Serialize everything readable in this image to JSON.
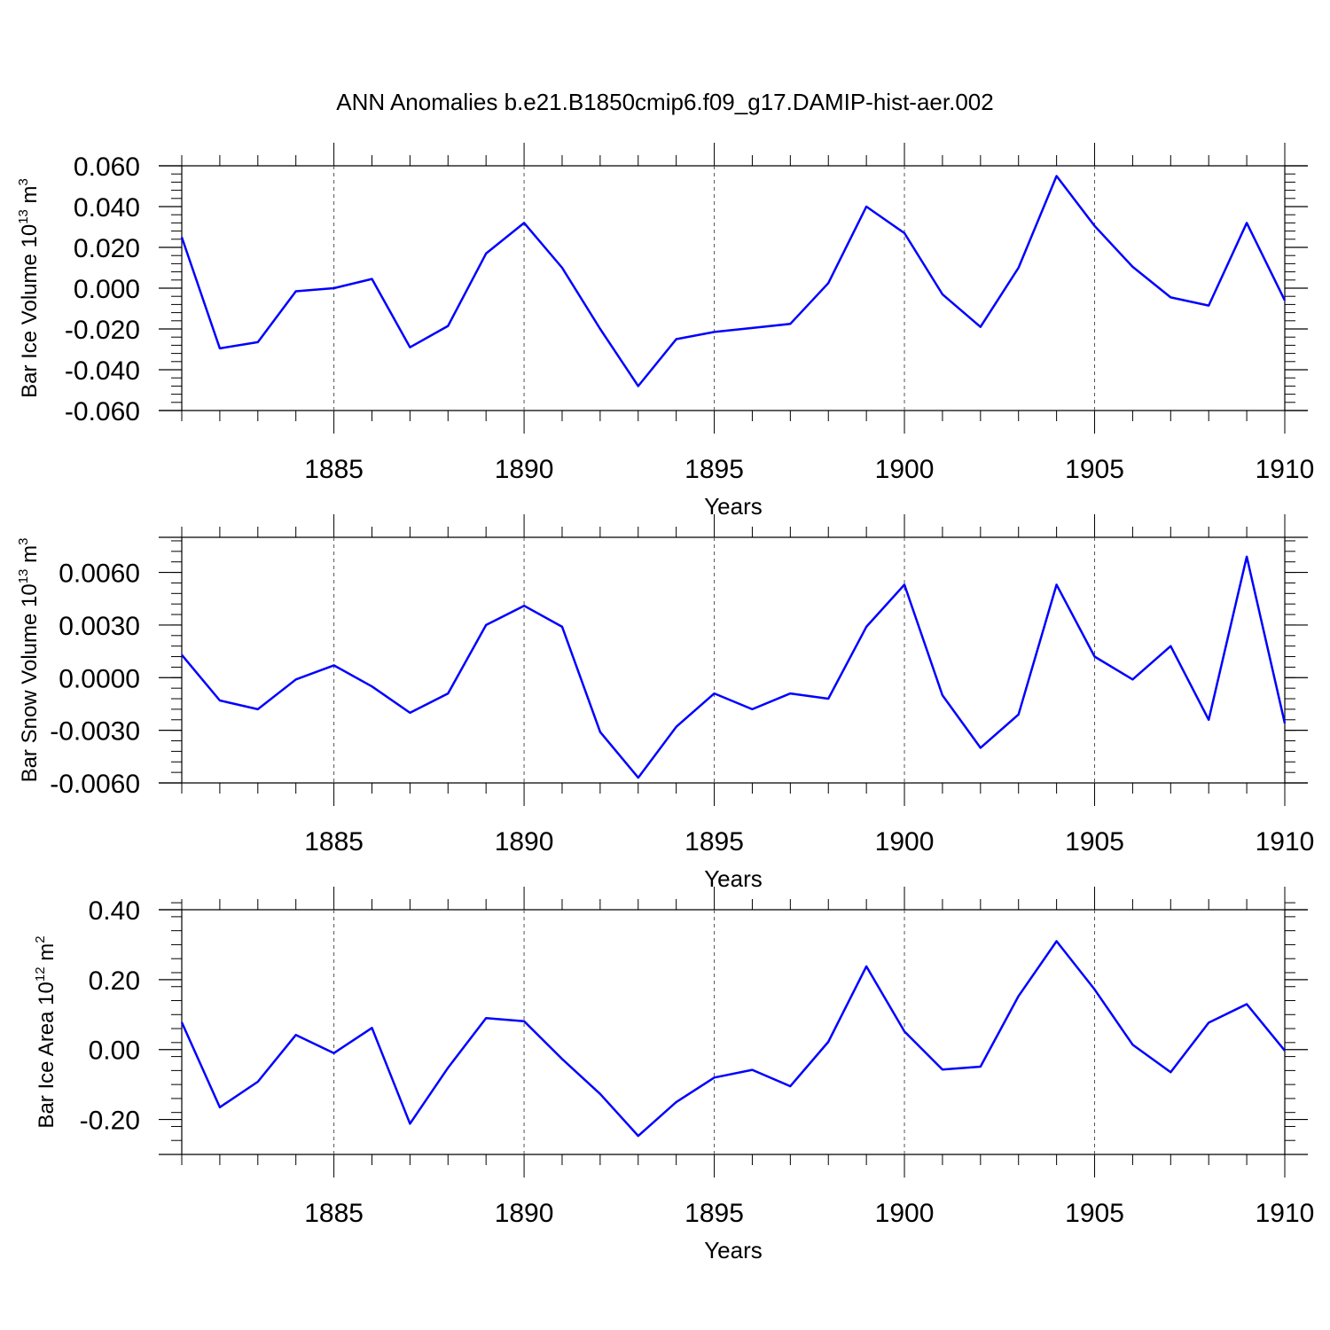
{
  "title": "ANN Anomalies b.e21.B1850cmip6.f09_g17.DAMIP-hist-aer.002",
  "chart_data": [
    {
      "type": "line",
      "title": "ANN Anomalies b.e21.B1850cmip6.f09_g17.DAMIP-hist-aer.002",
      "xlabel": "Years",
      "ylabel": "Bar Ice Volume 10",
      "ylabel_exp": "13",
      "ylabel_unit": "m",
      "ylabel_unit_exp": "3",
      "xlim": [
        1881,
        1910
      ],
      "ylim": [
        -0.06,
        0.06
      ],
      "xticks": [
        1885,
        1890,
        1895,
        1900,
        1905,
        1910
      ],
      "yticks": [
        -0.06,
        -0.04,
        -0.02,
        0,
        0.02,
        0.04,
        0.06
      ],
      "ytick_labels": [
        "-0.060",
        "-0.040",
        "-0.020",
        "0.000",
        "0.020",
        "0.040",
        "0.060"
      ],
      "grid": "dashed vertical lines at labeled x ticks",
      "color": "#0000ff",
      "x": [
        1881,
        1882,
        1883,
        1884,
        1885,
        1886,
        1887,
        1888,
        1889,
        1890,
        1891,
        1892,
        1893,
        1894,
        1895,
        1896,
        1897,
        1898,
        1899,
        1900,
        1901,
        1902,
        1903,
        1904,
        1905,
        1906,
        1907,
        1908,
        1909,
        1910
      ],
      "values": [
        0.025,
        -0.0295,
        -0.0265,
        -0.0015,
        0.0,
        0.0045,
        -0.029,
        -0.0185,
        0.017,
        0.032,
        0.01,
        -0.02,
        -0.048,
        -0.025,
        -0.0215,
        -0.0195,
        -0.0175,
        0.0025,
        0.04,
        0.027,
        -0.003,
        -0.019,
        0.01,
        0.055,
        0.0305,
        0.0105,
        -0.0045,
        -0.0085,
        0.032,
        -0.006
      ]
    },
    {
      "type": "line",
      "xlabel": "Years",
      "ylabel": "Bar Snow Volume 10",
      "ylabel_exp": "13",
      "ylabel_unit": "m",
      "ylabel_unit_exp": "3",
      "xlim": [
        1881,
        1910
      ],
      "ylim": [
        -0.006,
        0.008
      ],
      "xticks": [
        1885,
        1890,
        1895,
        1900,
        1905,
        1910
      ],
      "yticks": [
        -0.006,
        -0.003,
        0,
        0.003,
        0.006
      ],
      "ytick_labels": [
        "-0.0060",
        "-0.0030",
        "0.0000",
        "0.0030",
        "0.0060"
      ],
      "grid": "dashed vertical lines at labeled x ticks",
      "color": "#0000ff",
      "x": [
        1881,
        1882,
        1883,
        1884,
        1885,
        1886,
        1887,
        1888,
        1889,
        1890,
        1891,
        1892,
        1893,
        1894,
        1895,
        1896,
        1897,
        1898,
        1899,
        1900,
        1901,
        1902,
        1903,
        1904,
        1905,
        1906,
        1907,
        1908,
        1909,
        1910
      ],
      "values": [
        0.0013,
        -0.0013,
        -0.0018,
        -0.0001,
        0.0007,
        -0.0005,
        -0.002,
        -0.0009,
        0.003,
        0.0041,
        0.0029,
        -0.0031,
        -0.0057,
        -0.0028,
        -0.0009,
        -0.0018,
        -0.0009,
        -0.0012,
        0.0029,
        0.0053,
        -0.001,
        -0.004,
        -0.0021,
        0.0053,
        0.0012,
        -0.0001,
        0.0018,
        -0.0024,
        0.0069,
        -0.0026
      ]
    },
    {
      "type": "line",
      "xlabel": "Years",
      "ylabel": "Bar Ice Area 10",
      "ylabel_exp": "12",
      "ylabel_unit": "m",
      "ylabel_unit_exp": "2",
      "xlim": [
        1881,
        1910
      ],
      "ylim": [
        -0.3,
        0.4
      ],
      "xticks": [
        1885,
        1890,
        1895,
        1900,
        1905,
        1910
      ],
      "yticks": [
        -0.2,
        0,
        0.2,
        0.4
      ],
      "ytick_labels": [
        "-0.20",
        "0.00",
        "0.20",
        "0.40"
      ],
      "grid": "dashed vertical lines at labeled x ticks",
      "color": "#0000ff",
      "x": [
        1881,
        1882,
        1883,
        1884,
        1885,
        1886,
        1887,
        1888,
        1889,
        1890,
        1891,
        1892,
        1893,
        1894,
        1895,
        1896,
        1897,
        1898,
        1899,
        1900,
        1901,
        1902,
        1903,
        1904,
        1905,
        1906,
        1907,
        1908,
        1909,
        1910
      ],
      "values": [
        0.078,
        -0.165,
        -0.092,
        0.042,
        -0.01,
        0.062,
        -0.212,
        -0.052,
        0.09,
        0.081,
        -0.027,
        -0.127,
        -0.247,
        -0.15,
        -0.08,
        -0.058,
        -0.105,
        0.022,
        0.238,
        0.052,
        -0.057,
        -0.049,
        0.153,
        0.31,
        0.172,
        0.014,
        -0.065,
        0.077,
        0.13,
        -0.003
      ]
    }
  ]
}
